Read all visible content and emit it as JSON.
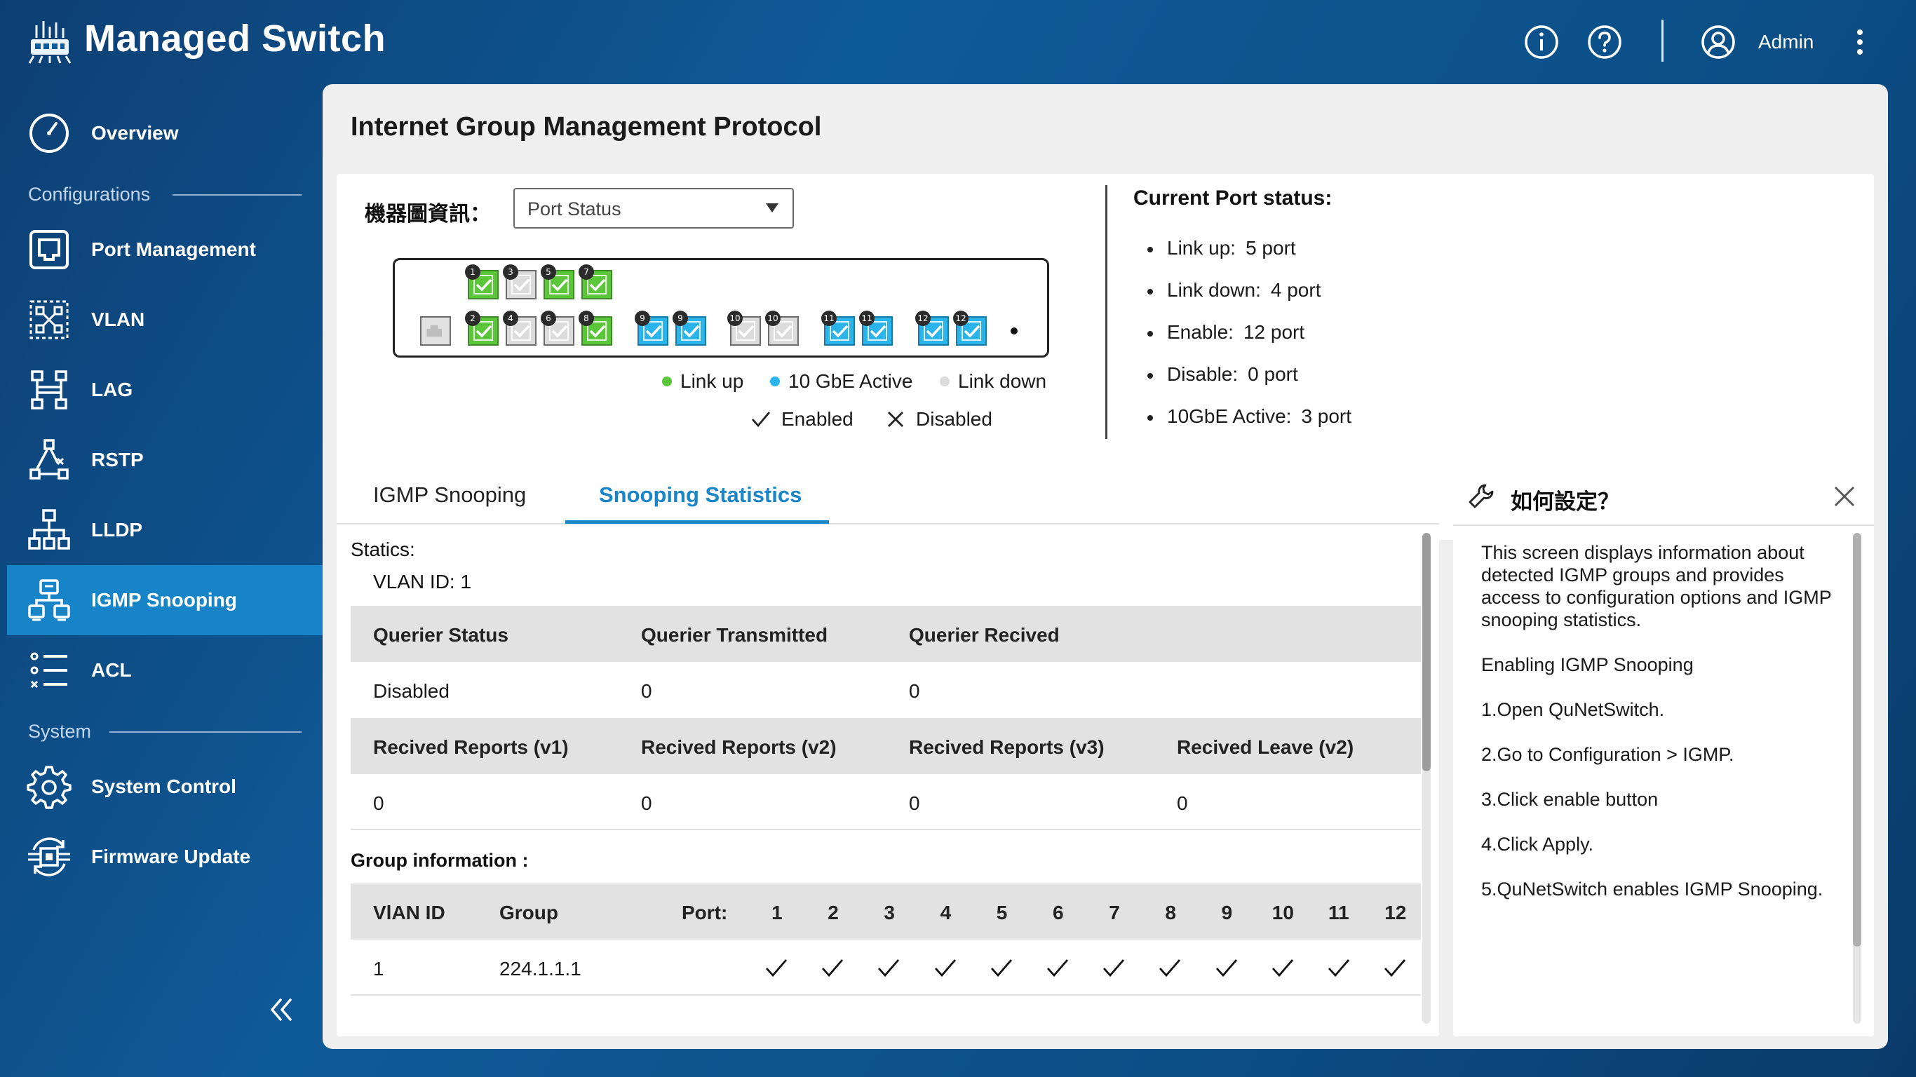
{
  "app": {
    "title": "Managed Switch",
    "user_name": "Admin"
  },
  "sidebar": {
    "overview": "Overview",
    "configurations_label": "Configurations",
    "system_label": "System",
    "items": [
      {
        "label": "Port Management"
      },
      {
        "label": "VLAN"
      },
      {
        "label": "LAG"
      },
      {
        "label": "RSTP"
      },
      {
        "label": "LLDP"
      },
      {
        "label": "IGMP Snooping",
        "active": true
      },
      {
        "label": "ACL"
      }
    ],
    "system_items": [
      {
        "label": "System Control"
      },
      {
        "label": "Firmware Update"
      }
    ]
  },
  "page": {
    "title": "Internet Group Management Protocol"
  },
  "device_info": {
    "label": "機器圖資訊：",
    "select_value": "Port Status"
  },
  "switch": {
    "top_ports": [
      {
        "num": "1",
        "state": "green"
      },
      {
        "num": "3",
        "state": "grey"
      },
      {
        "num": "5",
        "state": "green"
      },
      {
        "num": "7",
        "state": "green"
      }
    ],
    "bottom_ports": [
      {
        "num": "2",
        "state": "green"
      },
      {
        "num": "4",
        "state": "grey"
      },
      {
        "num": "6",
        "state": "grey"
      },
      {
        "num": "8",
        "state": "green"
      },
      {
        "num": "9",
        "state": "blue"
      },
      {
        "num": "9",
        "state": "blue"
      },
      {
        "num": "10",
        "state": "grey"
      },
      {
        "num": "10",
        "state": "grey"
      },
      {
        "num": "11",
        "state": "blue"
      },
      {
        "num": "11",
        "state": "blue"
      },
      {
        "num": "12",
        "state": "blue"
      },
      {
        "num": "12",
        "state": "blue"
      }
    ]
  },
  "legend": {
    "link_up": "Link up",
    "gbe_active": "10 GbE Active",
    "link_down": "Link down",
    "enabled": "Enabled",
    "disabled": "Disabled",
    "colors": {
      "link_up": "#5cc63a",
      "gbe_active": "#2ab4ea",
      "link_down": "#dcdcdc"
    }
  },
  "port_status": {
    "title": "Current Port status:",
    "rows": [
      {
        "label": "Link up:",
        "value": "5 port"
      },
      {
        "label": "Link down:",
        "value": "4 port"
      },
      {
        "label": "Enable:",
        "value": "12 port"
      },
      {
        "label": "Disable:",
        "value": "0 port"
      },
      {
        "label": "10GbE Active:",
        "value": "3 port"
      }
    ]
  },
  "tabs": [
    {
      "label": "IGMP Snooping"
    },
    {
      "label": "Snooping Statistics",
      "active": true
    }
  ],
  "stats": {
    "heading": "Statics:",
    "vlan_id": "VLAN ID: 1",
    "table1": {
      "headers": [
        "Querier Status",
        "Querier Transmitted",
        "Querier Recived"
      ],
      "values": [
        "Disabled",
        "0",
        "0"
      ]
    },
    "table2": {
      "headers": [
        "Recived Reports (v1)",
        "Recived Reports (v2)",
        "Recived Reports (v3)",
        "Recived Leave (v2)"
      ],
      "values": [
        "0",
        "0",
        "0",
        "0"
      ]
    },
    "group_heading": "Group information :",
    "group_table": {
      "headers": {
        "vlan": "VlAN ID",
        "group": "Group",
        "port": "Port:"
      },
      "port_numbers": [
        "1",
        "2",
        "3",
        "4",
        "5",
        "6",
        "7",
        "8",
        "9",
        "10",
        "11",
        "12"
      ],
      "rows": [
        {
          "vlan": "1",
          "group": "224.1.1.1",
          "ports": [
            true,
            true,
            true,
            true,
            true,
            true,
            true,
            true,
            true,
            true,
            true,
            true
          ]
        }
      ]
    }
  },
  "help": {
    "title": "如何設定？",
    "paragraphs": [
      "This screen displays information about detected IGMP groups and provides access to configuration options and IGMP snooping statistics.",
      "Enabling IGMP Snooping",
      "1.Open QuNetSwitch.",
      "2.Go to Configuration > IGMP.",
      "3.Click enable button",
      "4.Click Apply.",
      "5.QuNetSwitch enables IGMP Snooping."
    ]
  },
  "colors": {
    "accent": "#1a86c8",
    "sidebar_active": "#1784c7",
    "background": "#0f5a98"
  }
}
